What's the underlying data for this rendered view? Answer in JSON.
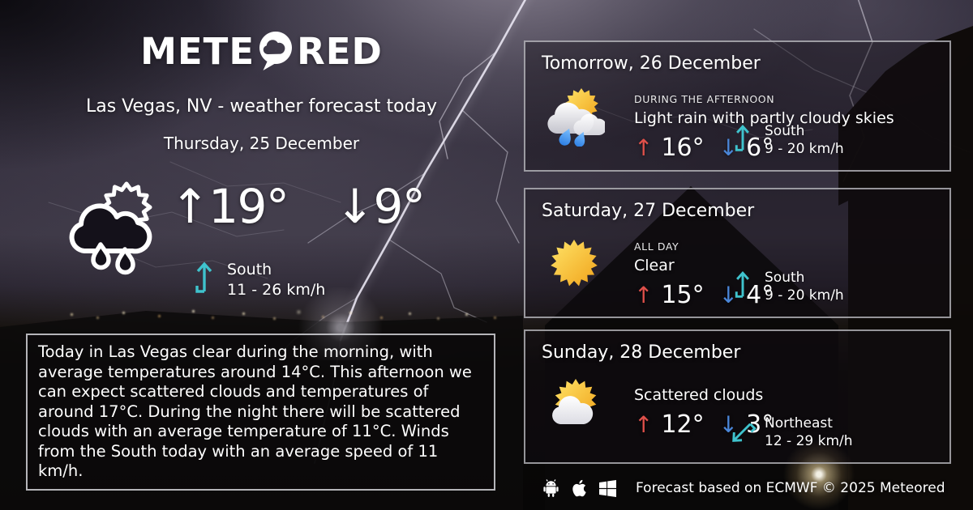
{
  "brand": {
    "logo_prefix": "METE",
    "logo_suffix": "RED"
  },
  "header": {
    "location_title": "Las Vegas, NV - weather forecast today",
    "date": "Thursday, 25 December"
  },
  "today": {
    "condition_icon": "sun-cloud-rain-outline",
    "temp_max": "19°",
    "temp_min": "9°",
    "wind": {
      "direction": "South",
      "speed": "11 - 26 km/h"
    }
  },
  "summary": "Today in Las Vegas clear during the morning, with average temperatures around 14°C. This afternoon we can expect scattered clouds and temperatures of around 17°C. During the night there will be scattered clouds with an average temperature of 11°C. Winds from the South today with an average speed of 11 km/h.",
  "glyphs": {
    "temp_up": "↑",
    "temp_down": "↓"
  },
  "forecast_cards": [
    {
      "title": "Tomorrow, 26 December",
      "period": "DURING THE AFTERNOON",
      "condition": "Light rain with partly cloudy skies",
      "temp_max": "16°",
      "temp_min": "6°",
      "wind": {
        "direction": "South",
        "speed": "9 - 20 km/h"
      },
      "condition_icon": "light-rain-partly-cloudy"
    },
    {
      "title": "Saturday, 27 December",
      "period": "ALL DAY",
      "condition": "Clear",
      "temp_max": "15°",
      "temp_min": "4°",
      "wind": {
        "direction": "South",
        "speed": "9 - 20 km/h"
      },
      "condition_icon": "clear-sun"
    },
    {
      "title": "Sunday, 28 December",
      "period": "",
      "condition": "Scattered clouds",
      "temp_max": "12°",
      "temp_min": "3°",
      "wind": {
        "direction": "Northeast",
        "speed": "12 - 29 km/h"
      },
      "condition_icon": "sun-scattered-clouds"
    }
  ],
  "footer": {
    "platforms": [
      "android",
      "apple",
      "windows"
    ],
    "attribution": "Forecast based on ECMWF © 2025 Meteored"
  },
  "colors": {
    "accent_wind": "#3fc3cd",
    "temp_up": "#e0504a",
    "temp_down": "#4a86d8",
    "sun_light": "#ffe468",
    "sun_dark": "#f0a31b",
    "rain_drop": "#3f97f0"
  }
}
